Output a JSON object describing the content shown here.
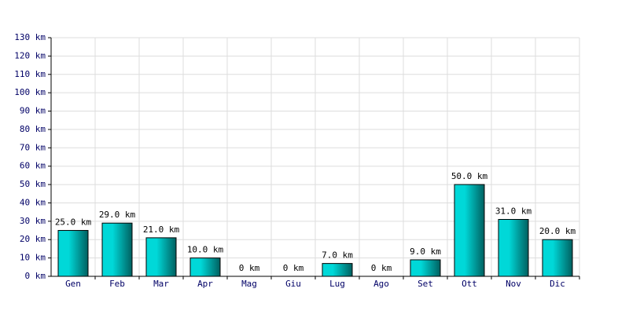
{
  "chart_data": {
    "type": "bar",
    "categories": [
      "Gen",
      "Feb",
      "Mar",
      "Apr",
      "Mag",
      "Giu",
      "Lug",
      "Ago",
      "Set",
      "Ott",
      "Nov",
      "Dic"
    ],
    "values": [
      25,
      29,
      21,
      10,
      0,
      0,
      7,
      0,
      9,
      50,
      31,
      20
    ],
    "value_labels": [
      "25.0 km",
      "29.0 km",
      "21.0 km",
      "10.0 km",
      "0 km",
      "0 km",
      "7.0 km",
      "0 km",
      "9.0 km",
      "50.0 km",
      "31.0 km",
      "20.0 km"
    ],
    "color": "#00d8d8",
    "ylim": [
      0,
      130
    ],
    "yticks": [
      {
        "value": 0,
        "label": "0 km"
      },
      {
        "value": 10,
        "label": "10 km"
      },
      {
        "value": 20,
        "label": "20 km"
      },
      {
        "value": 30,
        "label": "30 km"
      },
      {
        "value": 40,
        "label": "40 km"
      },
      {
        "value": 50,
        "label": "50 km"
      },
      {
        "value": 60,
        "label": "60 km"
      },
      {
        "value": 70,
        "label": "70 km"
      },
      {
        "value": 80,
        "label": "80 km"
      },
      {
        "value": 90,
        "label": "90 km"
      },
      {
        "value": 100,
        "label": "100 km"
      },
      {
        "value": 110,
        "label": "110 km"
      },
      {
        "value": 120,
        "label": "120 km"
      },
      {
        "value": 130,
        "label": "130 km"
      }
    ],
    "grid": true
  }
}
